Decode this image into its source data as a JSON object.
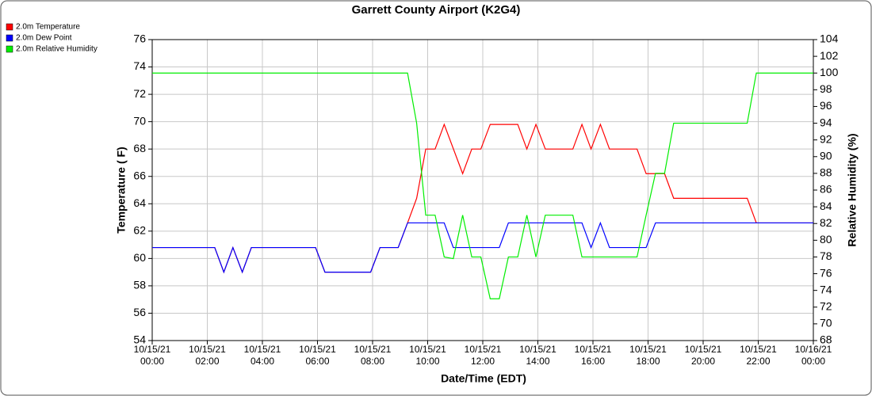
{
  "chart_data": {
    "type": "line",
    "title": "Garrett County Airport (K2G4)",
    "x_label": "Date/Time (EDT)",
    "y_label": "Temperature ( F)",
    "y2_label": "Relative Humidity (%)",
    "legend": "top-left",
    "grid": true,
    "xlim": [
      0,
      24
    ],
    "xticks": [
      {
        "value": 0,
        "label": "10/15/21 00:00"
      },
      {
        "value": 2,
        "label": "10/15/21 02:00"
      },
      {
        "value": 4,
        "label": "10/15/21 04:00"
      },
      {
        "value": 6,
        "label": "10/15/21 06:00"
      },
      {
        "value": 8,
        "label": "10/15/21 08:00"
      },
      {
        "value": 10,
        "label": "10/15/21 10:00"
      },
      {
        "value": 12,
        "label": "10/15/21 12:00"
      },
      {
        "value": 14,
        "label": "10/15/21 14:00"
      },
      {
        "value": 16,
        "label": "10/15/21 16:00"
      },
      {
        "value": 18,
        "label": "10/15/21 18:00"
      },
      {
        "value": 20,
        "label": "10/15/21 20:00"
      },
      {
        "value": 22,
        "label": "10/15/21 22:00"
      },
      {
        "value": 24,
        "label": "10/16/21 00:00"
      }
    ],
    "ylim": [
      54,
      76
    ],
    "yticks": [
      54,
      56,
      58,
      60,
      62,
      64,
      66,
      68,
      70,
      72,
      74,
      76
    ],
    "y2lim": [
      68,
      104
    ],
    "y2ticks": [
      68,
      70,
      72,
      74,
      76,
      78,
      80,
      82,
      84,
      86,
      88,
      90,
      92,
      94,
      96,
      98,
      100,
      102,
      104
    ],
    "series": [
      {
        "name": "2.0m Temperature",
        "color": "#ff0000",
        "x": [
          0,
          2.27,
          2.6,
          2.93,
          3.27,
          3.6,
          5.93,
          6.27,
          7.93,
          8.27,
          8.93,
          9.27,
          9.6,
          9.93,
          10.27,
          10.6,
          11.27,
          11.6,
          11.93,
          12.27,
          13.27,
          13.6,
          13.93,
          14.27,
          15.27,
          15.6,
          15.93,
          16.27,
          16.6,
          17.6,
          17.93,
          18.6,
          18.93,
          21.6,
          21.93,
          24
        ],
        "values": [
          60.8,
          60.8,
          59,
          60.8,
          59,
          60.8,
          60.8,
          59,
          59,
          60.8,
          60.8,
          62.6,
          64.4,
          68,
          68,
          69.8,
          66.2,
          68,
          68,
          69.8,
          69.8,
          68,
          69.8,
          68,
          68,
          69.8,
          68,
          69.8,
          68,
          68,
          66.2,
          66.2,
          64.4,
          64.4,
          62.6,
          62.6
        ]
      },
      {
        "name": "2.0m Dew Point",
        "color": "#0000ff",
        "x": [
          0,
          2.27,
          2.6,
          2.93,
          3.27,
          3.6,
          5.93,
          6.27,
          7.93,
          8.27,
          8.93,
          9.27,
          10.6,
          10.93,
          12.6,
          12.93,
          15.6,
          15.93,
          16.27,
          16.6,
          17.93,
          18.27,
          24
        ],
        "values": [
          60.8,
          60.8,
          59,
          60.8,
          59,
          60.8,
          60.8,
          59,
          59,
          60.8,
          60.8,
          62.6,
          62.6,
          60.8,
          60.8,
          62.6,
          62.6,
          60.8,
          62.6,
          60.8,
          60.8,
          62.6,
          62.6
        ]
      },
      {
        "name": "2.0m Relative Humidity",
        "color": "#00ee00",
        "axis": "y2",
        "x": [
          0,
          9.27,
          9.6,
          9.93,
          10.27,
          10.6,
          10.93,
          11.27,
          11.6,
          11.93,
          12.27,
          12.6,
          12.93,
          13.27,
          13.6,
          13.93,
          14.27,
          15.27,
          15.6,
          17.6,
          17.93,
          18.27,
          18.6,
          18.93,
          21.6,
          21.93,
          24
        ],
        "values": [
          100,
          100,
          94,
          83,
          83,
          78,
          77.8,
          83,
          78,
          78,
          73,
          73,
          78,
          78,
          83,
          78,
          83,
          83,
          78,
          78,
          83,
          88,
          88,
          94,
          94,
          100,
          100
        ]
      }
    ]
  }
}
